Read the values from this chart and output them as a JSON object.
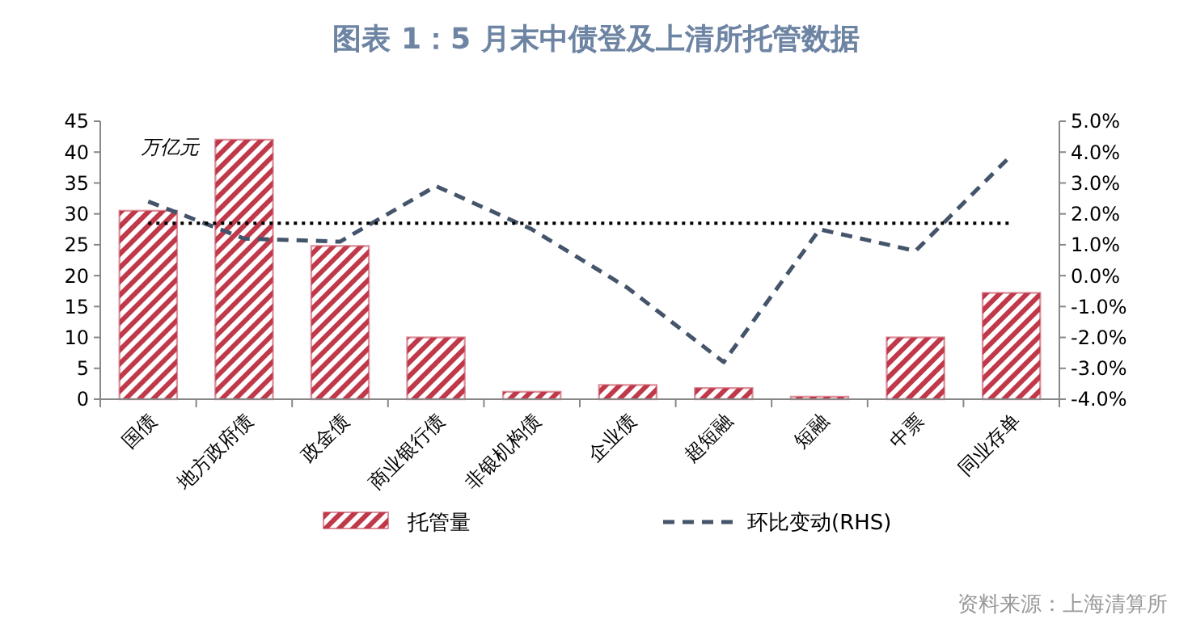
{
  "chart_data": {
    "type": "bar",
    "title": "图表 1：5 月末中债登及上清所托管数据",
    "ylabel": "万亿元",
    "categories": [
      "国债",
      "地方政府债",
      "政金债",
      "商业银行债",
      "非银机构债",
      "企业债",
      "超短融",
      "短融",
      "中票",
      "同业存单"
    ],
    "series": [
      {
        "name": "托管量",
        "color": "#c0394b",
        "values": [
          30.5,
          42,
          24.8,
          10,
          1.2,
          2.3,
          1.8,
          0.4,
          10,
          17.2
        ]
      },
      {
        "name": "环比变动(RHS)",
        "type": "line",
        "axis": "y2",
        "color": "#44546a",
        "line_style": "dashed",
        "values": [
          2.4,
          1.2,
          1.1,
          2.9,
          1.5,
          -0.4,
          -2.8,
          1.5,
          0.8,
          3.9
        ]
      }
    ],
    "ylim": [
      0,
      45
    ],
    "yticks": [
      0,
      5,
      10,
      15,
      20,
      25,
      30,
      35,
      40,
      45
    ],
    "y2lim": [
      -4,
      5
    ],
    "y2ticks": [
      {
        "value": -4,
        "label": "-4.0%"
      },
      {
        "value": -3,
        "label": "-3.0%"
      },
      {
        "value": -2,
        "label": "-2.0%"
      },
      {
        "value": -1,
        "label": "-1.0%"
      },
      {
        "value": 0,
        "label": "0.0%"
      },
      {
        "value": 1,
        "label": "1.0%"
      },
      {
        "value": 2,
        "label": "2.0%"
      },
      {
        "value": 3,
        "label": "3.0%"
      },
      {
        "value": 4,
        "label": "4.0%"
      },
      {
        "value": 5,
        "label": "5.0%"
      }
    ],
    "ref_lines": [
      {
        "axis": "y2",
        "value": 1.7,
        "label": null,
        "color": "#000000",
        "line_style": "dotted"
      }
    ],
    "legend": "bottom",
    "grid": false,
    "annotations": [
      "资料来源：上海清算所"
    ]
  }
}
